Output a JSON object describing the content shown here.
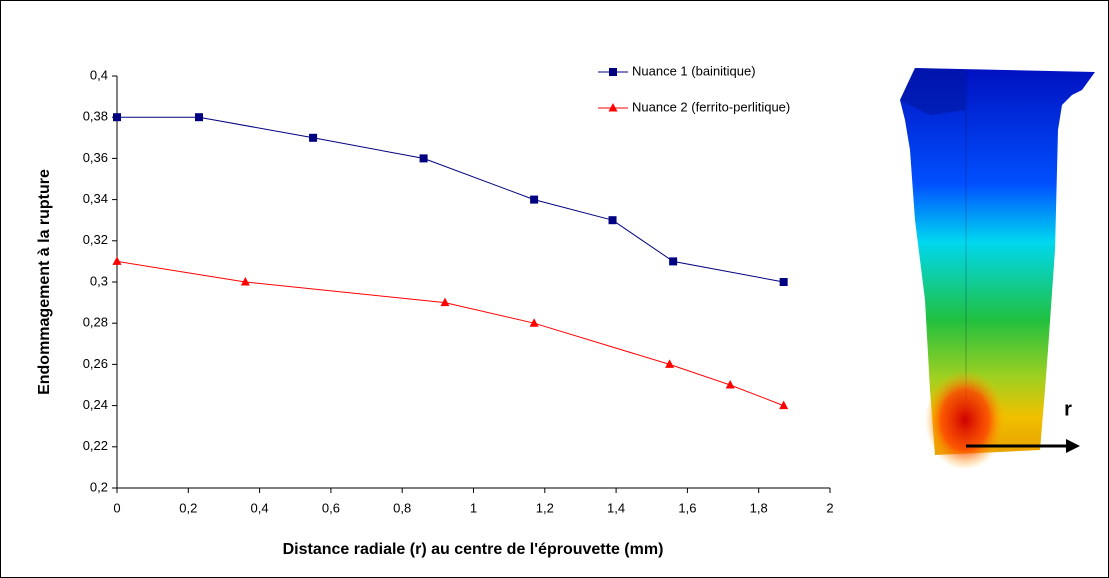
{
  "chart_data": {
    "type": "line",
    "x_label": "Distance radiale (r) au centre de l'éprouvette (mm)",
    "y_label": "Endommagement à la rupture",
    "annotation": "r",
    "xlim": [
      0,
      2
    ],
    "xticks": [
      0,
      {
        "value": 0.2,
        "label": "0,2"
      },
      {
        "value": 0.4,
        "label": "0,4"
      },
      {
        "value": 0.6,
        "label": "0,6"
      },
      {
        "value": 0.8,
        "label": "0,8"
      },
      1,
      {
        "value": 1.2,
        "label": "1,2"
      },
      {
        "value": 1.4,
        "label": "1,4"
      },
      {
        "value": 1.6,
        "label": "1,6"
      },
      {
        "value": 1.8,
        "label": "1,8"
      },
      2
    ],
    "ylim": [
      0.2,
      0.4
    ],
    "yticks": [
      {
        "value": 0.2,
        "label": "0,2"
      },
      {
        "value": 0.22,
        "label": "0,22"
      },
      {
        "value": 0.24,
        "label": "0,24"
      },
      {
        "value": 0.26,
        "label": "0,26"
      },
      {
        "value": 0.28,
        "label": "0,28"
      },
      {
        "value": 0.3,
        "label": "0,3"
      },
      {
        "value": 0.32,
        "label": "0,32"
      },
      {
        "value": 0.34,
        "label": "0,34"
      },
      {
        "value": 0.36,
        "label": "0,36"
      },
      {
        "value": 0.38,
        "label": "0,38"
      },
      {
        "value": 0.4,
        "label": "0,4"
      }
    ],
    "grid": false,
    "legend": "top-right",
    "series": [
      {
        "name": "Nuance 1 (bainitique)",
        "color": "#000080",
        "marker": "square",
        "x": [
          0,
          0.23,
          0.55,
          0.86,
          1.17,
          1.39,
          1.56,
          1.87
        ],
        "values": [
          0.38,
          0.38,
          0.37,
          0.36,
          0.34,
          0.33,
          0.31,
          0.3
        ]
      },
      {
        "name": "Nuance 2 (ferrito-perlitique)",
        "color": "#ff0000",
        "marker": "triangle",
        "x": [
          0,
          0.36,
          0.92,
          1.17,
          1.55,
          1.72,
          1.87
        ],
        "values": [
          0.31,
          0.3,
          0.29,
          0.28,
          0.26,
          0.25,
          0.24
        ]
      }
    ]
  }
}
